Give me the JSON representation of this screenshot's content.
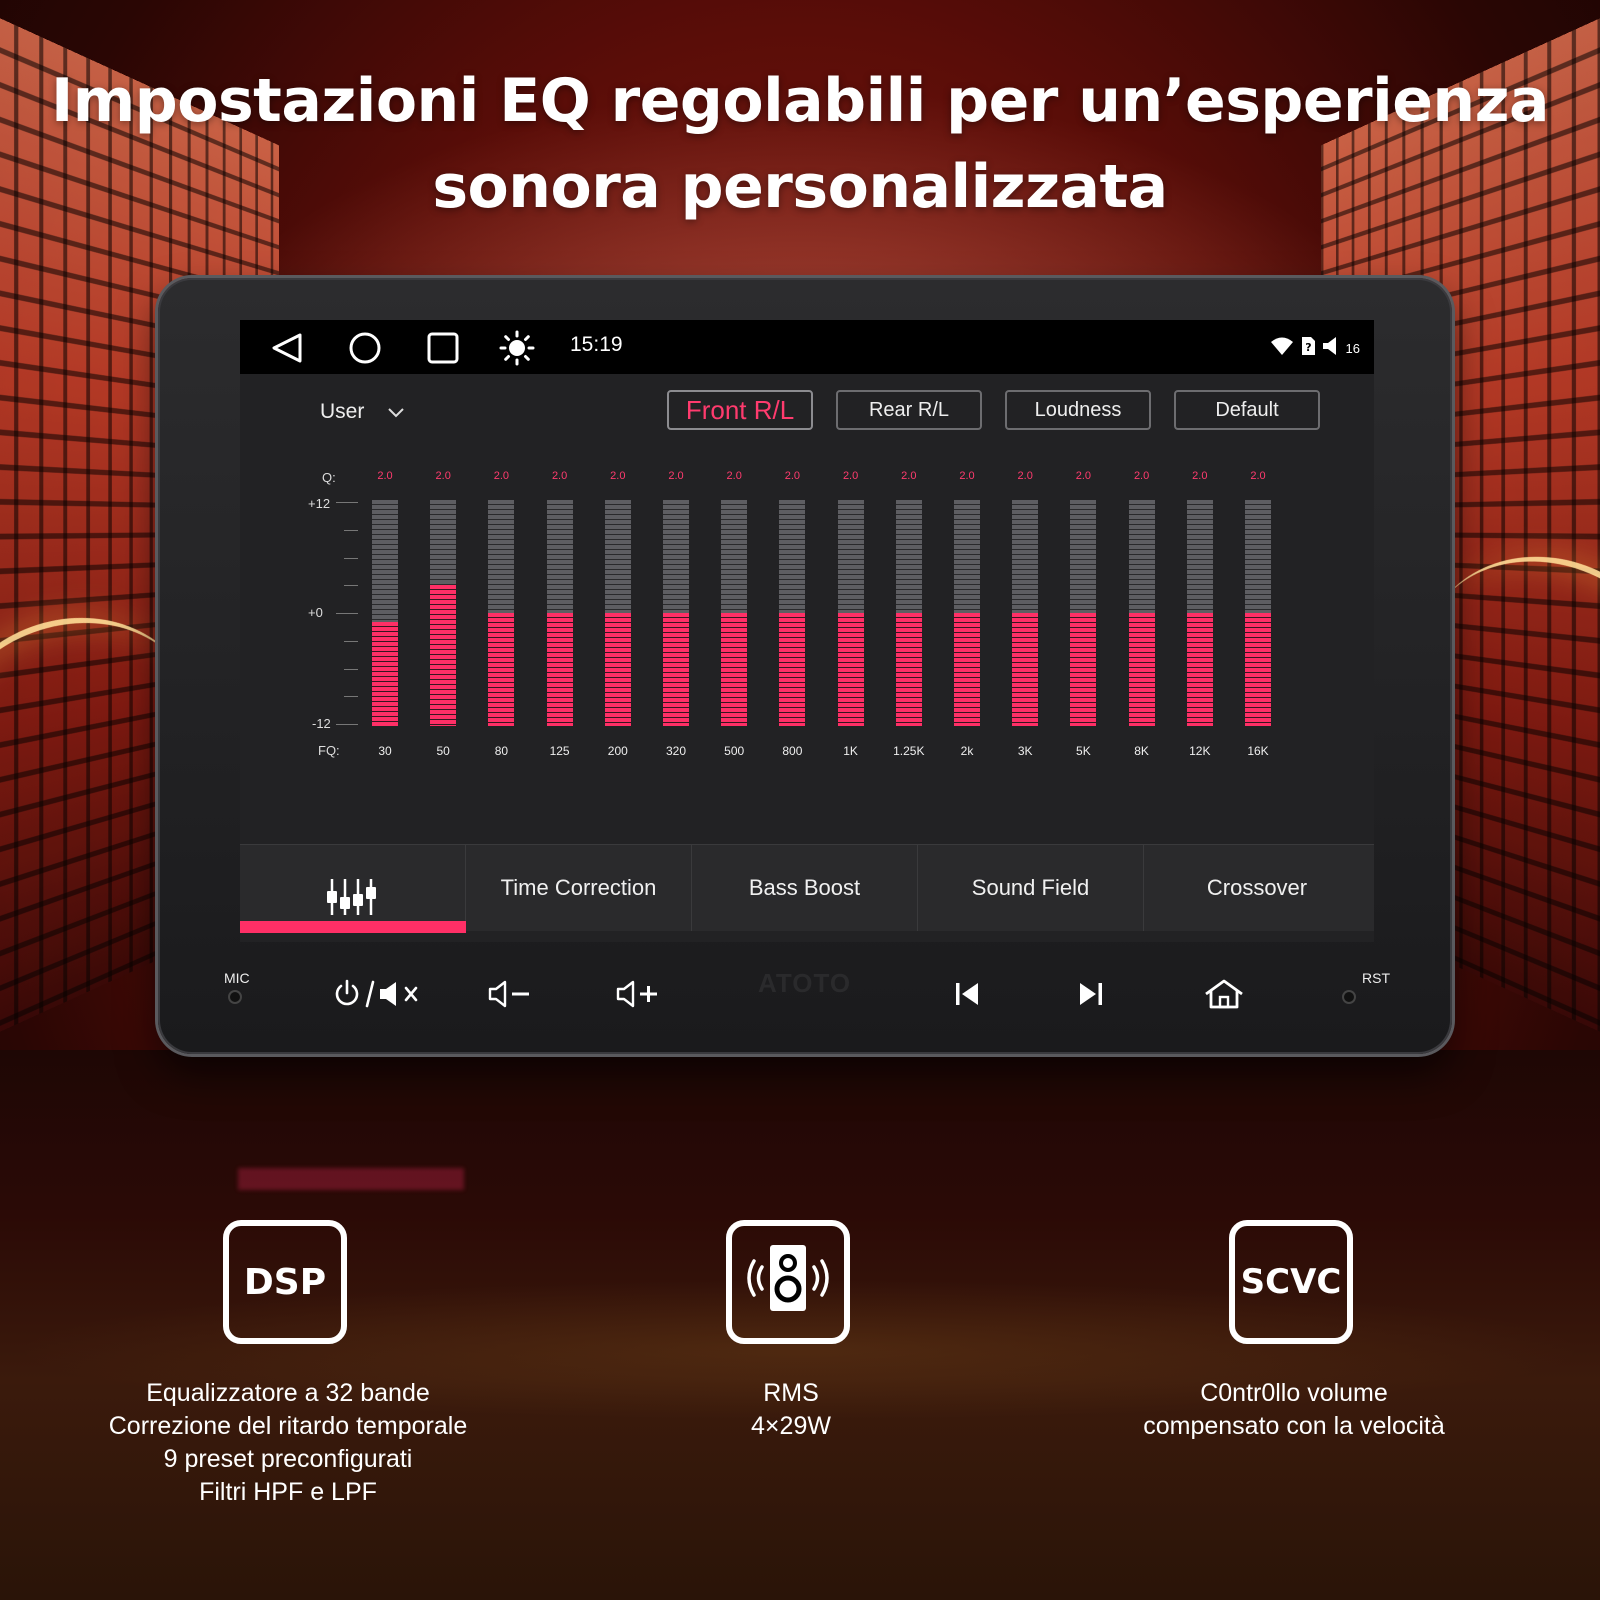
{
  "headline": {
    "line1": "Impostazioni EQ regolabili per un’esperienza",
    "line2": "sonora personalizzata"
  },
  "statusbar": {
    "time": "15:19",
    "volume_level": "16",
    "icons": [
      "back-icon",
      "home-icon",
      "recents-icon",
      "brightness-icon",
      "wifi-icon",
      "sim-icon",
      "volume-icon"
    ]
  },
  "eq": {
    "preset_label": "User",
    "buttons": [
      "Front R/L",
      "Rear R/L",
      "Loudness",
      "Default"
    ],
    "active_button": "Front R/L",
    "q_label": "Q:",
    "fq_label": "FQ:",
    "y_labels": [
      "+12",
      "+0",
      "-12"
    ],
    "bands": [
      {
        "fq": "30",
        "q": "2.0",
        "gain": -1
      },
      {
        "fq": "50",
        "q": "2.0",
        "gain": 3
      },
      {
        "fq": "80",
        "q": "2.0",
        "gain": 0
      },
      {
        "fq": "125",
        "q": "2.0",
        "gain": 0
      },
      {
        "fq": "200",
        "q": "2.0",
        "gain": 0
      },
      {
        "fq": "320",
        "q": "2.0",
        "gain": 0
      },
      {
        "fq": "500",
        "q": "2.0",
        "gain": 0
      },
      {
        "fq": "800",
        "q": "2.0",
        "gain": 0
      },
      {
        "fq": "1K",
        "q": "2.0",
        "gain": 0
      },
      {
        "fq": "1.25K",
        "q": "2.0",
        "gain": 0
      },
      {
        "fq": "2k",
        "q": "2.0",
        "gain": 0
      },
      {
        "fq": "3K",
        "q": "2.0",
        "gain": 0
      },
      {
        "fq": "5K",
        "q": "2.0",
        "gain": 0
      },
      {
        "fq": "8K",
        "q": "2.0",
        "gain": 0
      },
      {
        "fq": "12K",
        "q": "2.0",
        "gain": 0
      },
      {
        "fq": "16K",
        "q": "2.0",
        "gain": 0
      }
    ],
    "gain_range": [
      -12,
      12
    ]
  },
  "tabs": {
    "items": [
      "Time Correction",
      "Bass Boost",
      "Sound Field",
      "Crossover"
    ],
    "active_icon": "equalizer-icon"
  },
  "hardware": {
    "mic_label": "MIC",
    "rst_label": "RST",
    "brand": "ATOTO",
    "buttons": [
      "power-mute-icon",
      "volume-down-icon",
      "volume-up-icon",
      "previous-track-icon",
      "next-track-icon",
      "home-icon"
    ]
  },
  "features": [
    {
      "badge": "DSP",
      "lines": [
        "Equalizzatore a 32 bande",
        "Correzione del ritardo temporale",
        "9 preset preconfigurati",
        "Filtri HPF e LPF"
      ]
    },
    {
      "badge_icon": "speaker-icon",
      "lines": [
        "RMS",
        "4×29W"
      ]
    },
    {
      "badge": "SCVC",
      "lines": [
        "C0ntr0llo volume",
        "compensato con la velocità"
      ]
    }
  ],
  "colors": {
    "accent": "#ff2f66",
    "bar_bg": "#5e5e62",
    "screen_bg": "#222224"
  }
}
